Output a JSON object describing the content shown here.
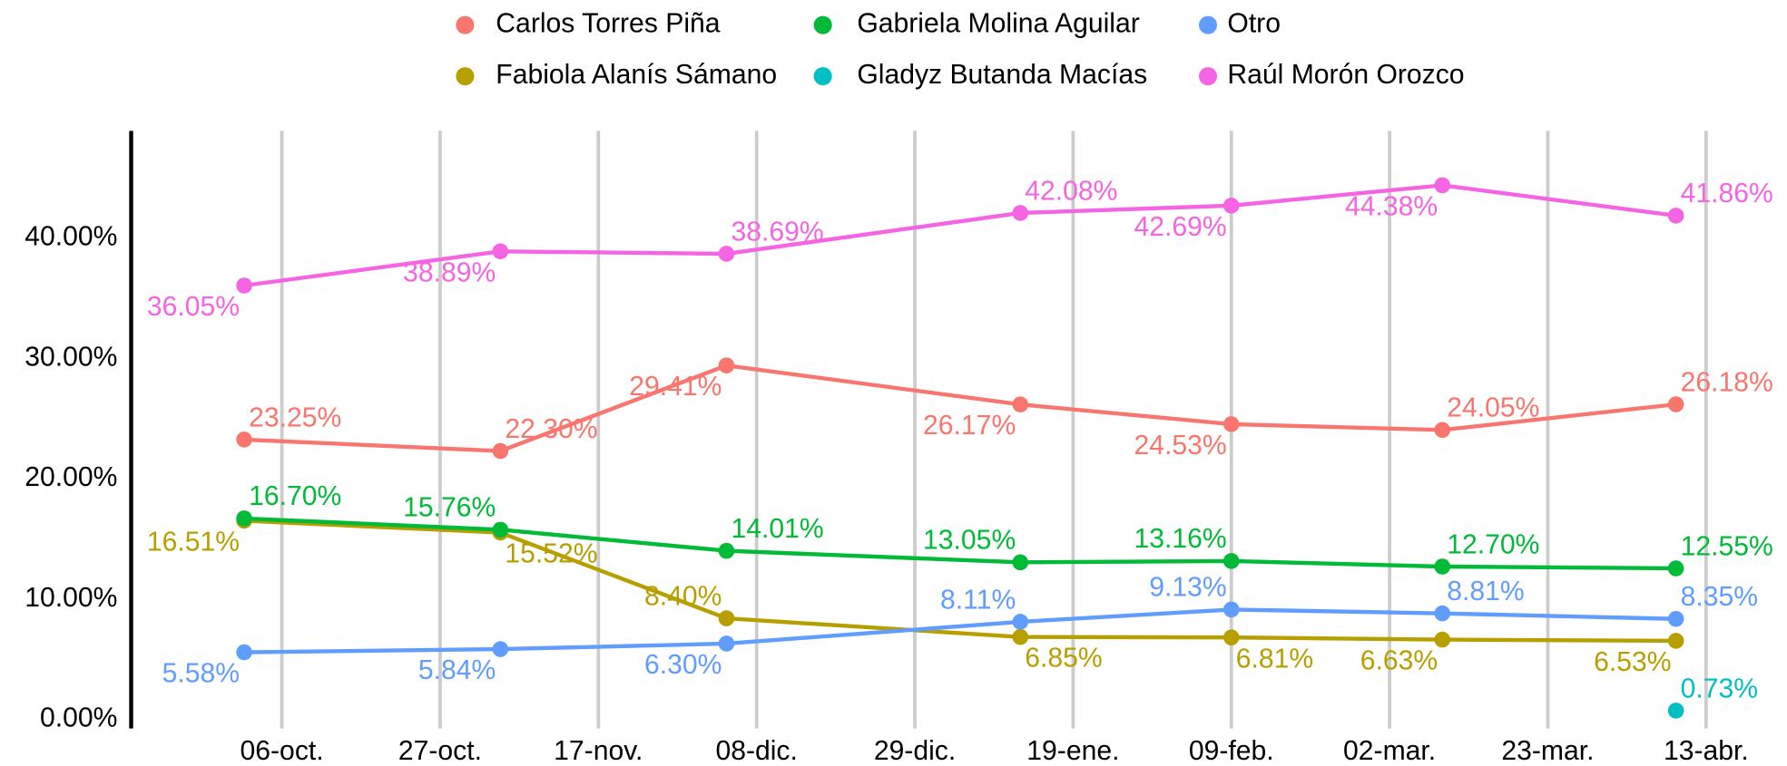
{
  "chart_data": {
    "type": "line",
    "x": [
      "01-oct.",
      "04-nov.",
      "04-dic.",
      "12-ene.",
      "09-feb.",
      "09-mar.",
      "09-abr."
    ],
    "series": [
      {
        "name": "Carlos Torres Piña",
        "color": "#F8766D",
        "values": [
          23.25,
          22.3,
          29.41,
          26.17,
          24.53,
          24.05,
          26.18
        ],
        "value_labels": [
          "23.25%",
          "22.30%",
          "29.41%",
          "26.17%",
          "24.53%",
          "24.05%",
          "26.18%"
        ]
      },
      {
        "name": "Fabiola Alanís Sámano",
        "color": "#B79F00",
        "values": [
          16.51,
          15.52,
          8.4,
          6.85,
          6.81,
          6.63,
          6.53
        ],
        "value_labels": [
          "16.51%",
          "15.52%",
          "8.40%",
          "6.85%",
          "6.81%",
          "6.63%",
          "6.53%"
        ]
      },
      {
        "name": "Gabriela Molina Aguilar",
        "color": "#00BA38",
        "values": [
          16.7,
          15.76,
          14.01,
          13.05,
          13.16,
          12.7,
          12.55
        ],
        "value_labels": [
          "16.70%",
          "15.76%",
          "14.01%",
          "13.05%",
          "13.16%",
          "12.70%",
          "12.55%"
        ]
      },
      {
        "name": "Gladyz Butanda Macías",
        "color": "#00BFC4",
        "values": [
          null,
          null,
          null,
          null,
          null,
          null,
          0.73
        ],
        "value_labels": [
          null,
          null,
          null,
          null,
          null,
          null,
          "0.73%"
        ]
      },
      {
        "name": "Otro",
        "color": "#619CFF",
        "values": [
          5.58,
          5.84,
          6.3,
          8.11,
          9.13,
          8.81,
          8.35
        ],
        "value_labels": [
          "5.58%",
          "5.84%",
          "6.30%",
          "8.11%",
          "9.13%",
          "8.81%",
          "8.35%"
        ]
      },
      {
        "name": "Raúl Morón Orozco",
        "color": "#F564E3",
        "values": [
          36.05,
          38.89,
          38.69,
          42.08,
          42.69,
          44.38,
          41.86
        ],
        "value_labels": [
          "36.05%",
          "38.89%",
          "38.69%",
          "42.08%",
          "42.69%",
          "44.38%",
          "41.86%"
        ]
      }
    ],
    "xlim": [
      "16-sep.",
      "21-abr."
    ],
    "xticks": [
      "06-oct.",
      "27-oct.",
      "17-nov.",
      "08-dic.",
      "29-dic.",
      "19-ene.",
      "09-feb.",
      "02-mar.",
      "23-mar.",
      "13-abr."
    ],
    "ylim": [
      -0.75,
      48.9
    ],
    "yticks": [
      {
        "value": 0,
        "label": "0.00%"
      },
      {
        "value": 10,
        "label": "10.00%"
      },
      {
        "value": 20,
        "label": "20.00%"
      },
      {
        "value": 30,
        "label": "30.00%"
      },
      {
        "value": 40,
        "label": "40.00%"
      }
    ],
    "grid": "x",
    "legend": "top"
  }
}
